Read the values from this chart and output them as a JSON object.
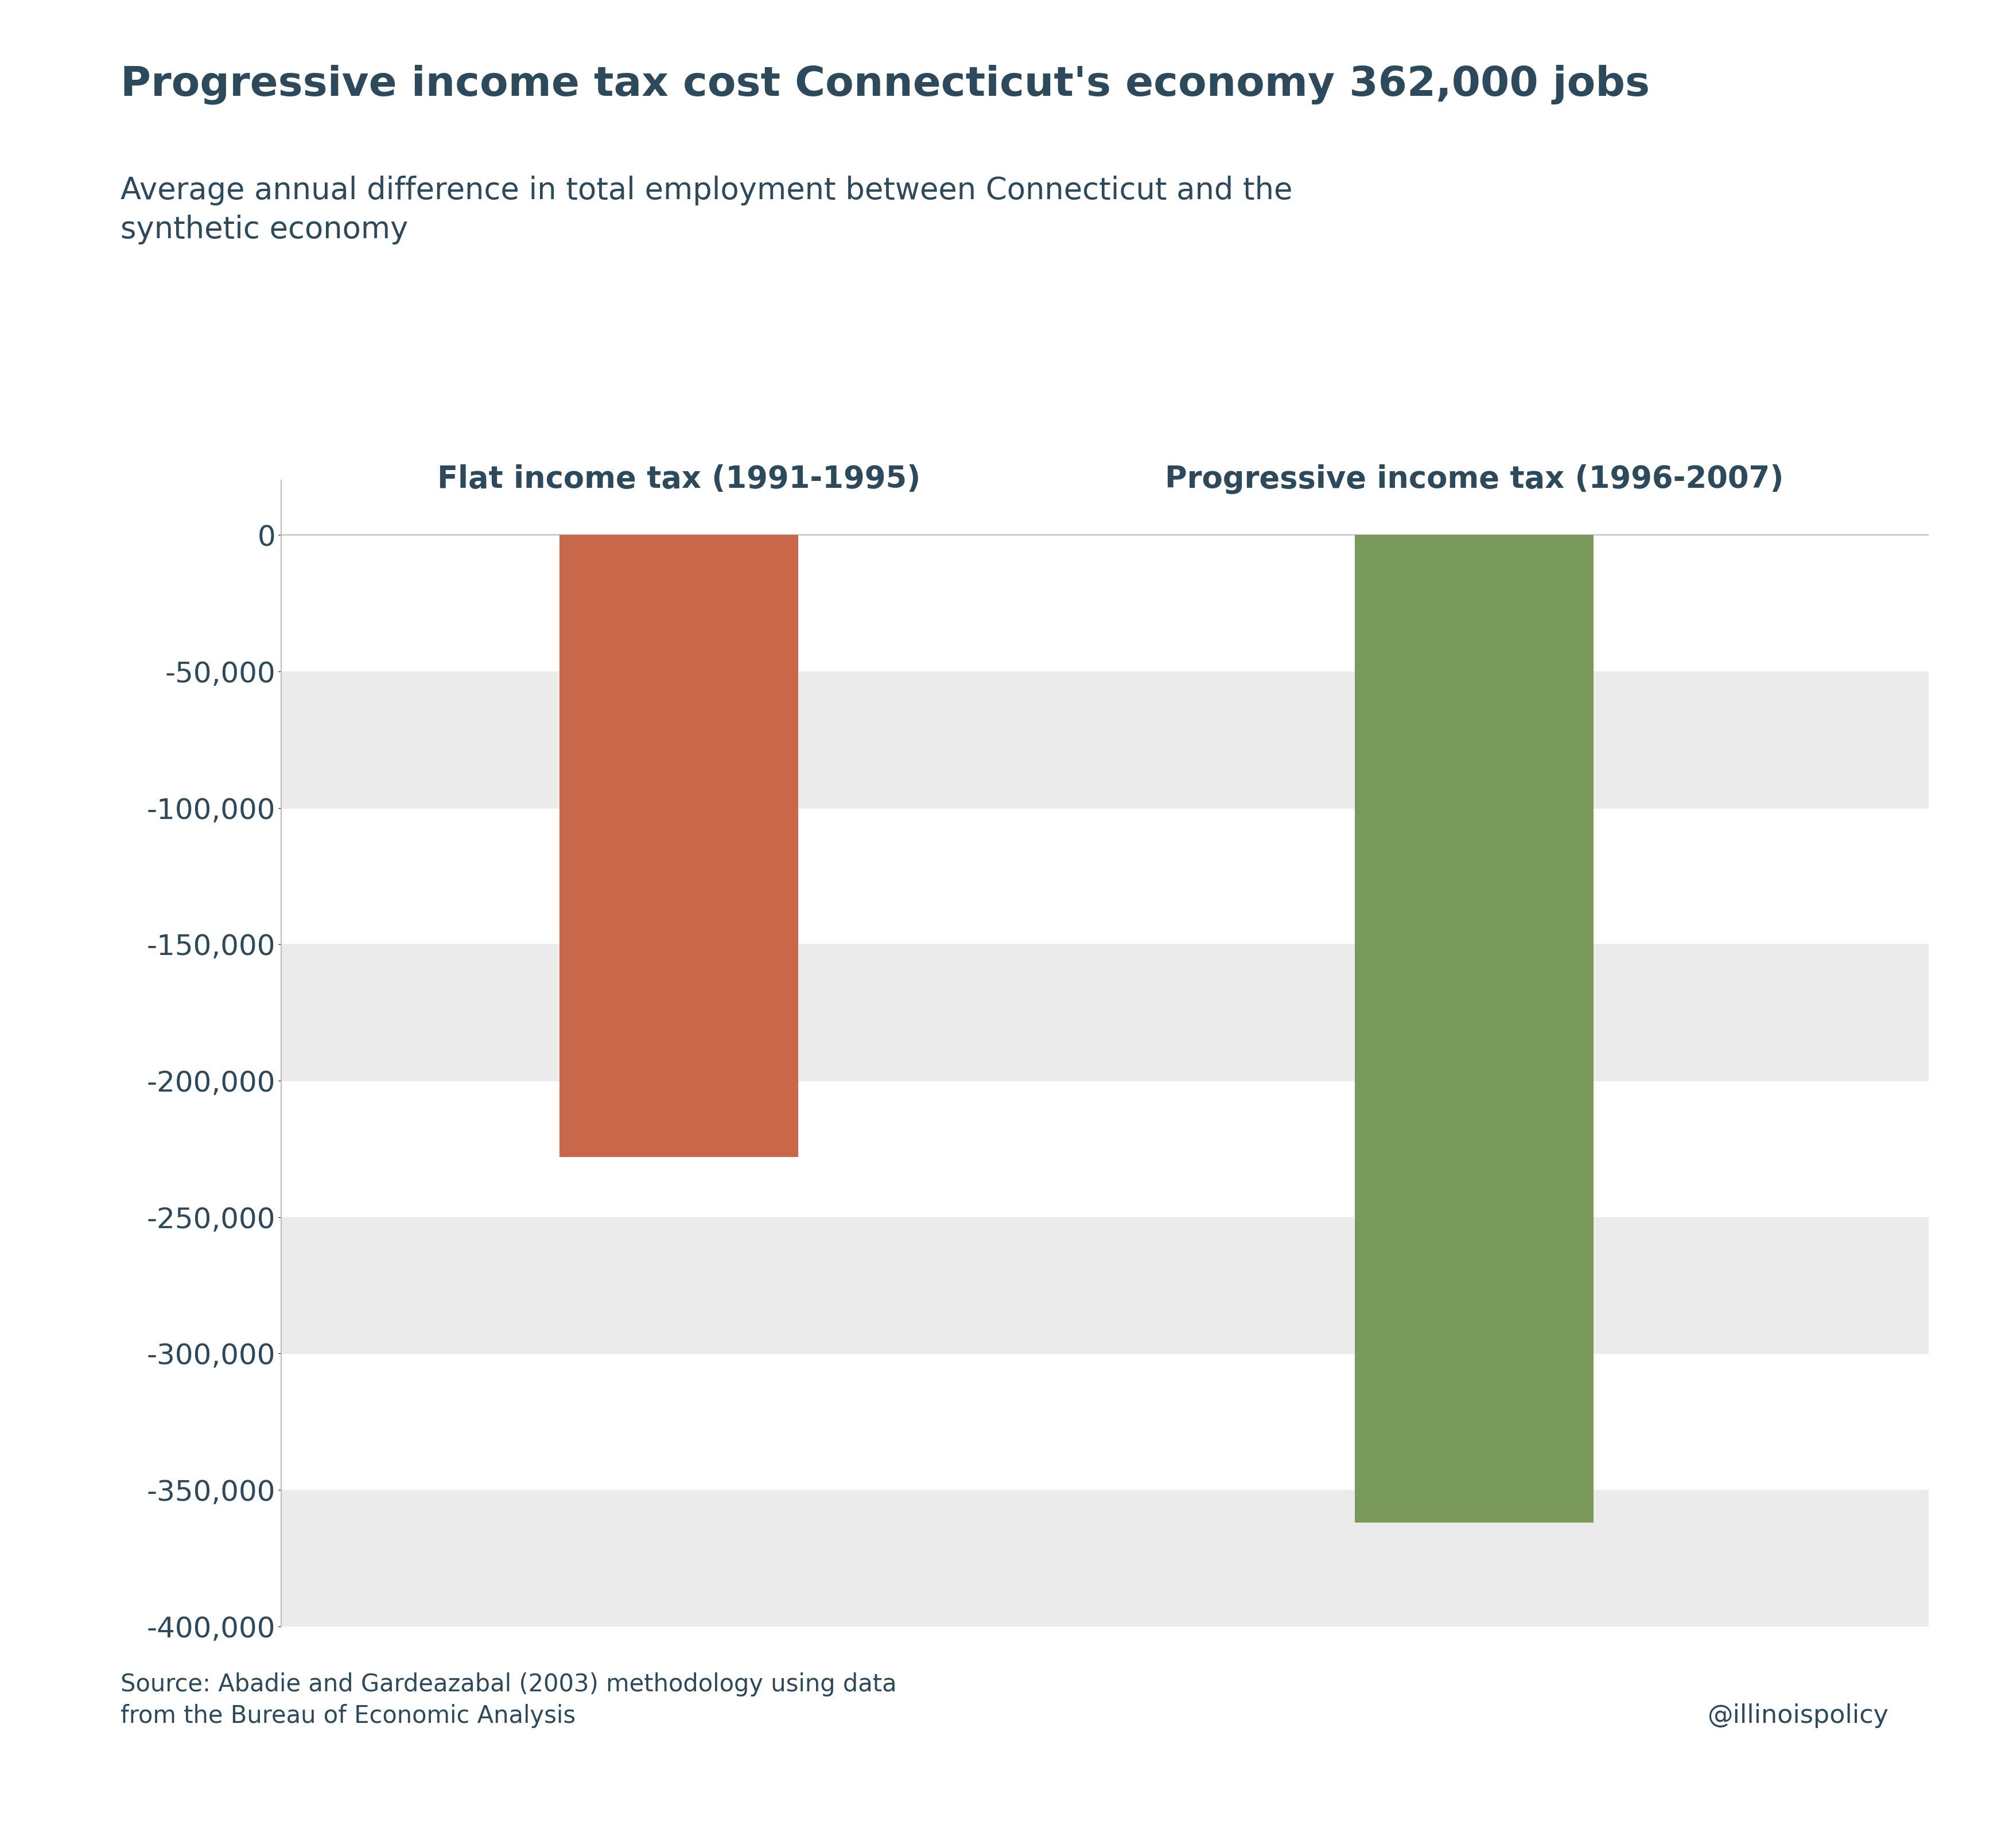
{
  "title": "Progressive income tax cost Connecticut's economy 362,000 jobs",
  "subtitle": "Average annual difference in total employment between Connecticut and the\nsynthetic economy",
  "bar_labels": [
    "Flat income tax (1991-1995)",
    "Progressive income tax (1996-2007)"
  ],
  "bar_values": [
    -228000,
    -362000
  ],
  "bar_colors": [
    "#c9674a",
    "#7a9a5b"
  ],
  "bar_positions": [
    1.0,
    2.4
  ],
  "bar_width": 0.42,
  "ylim": [
    -400000,
    20000
  ],
  "yticks": [
    0,
    -50000,
    -100000,
    -150000,
    -200000,
    -250000,
    -300000,
    -350000,
    -400000
  ],
  "ytick_labels": [
    "0",
    "-50,000",
    "-100,000",
    "-150,000",
    "-200,000",
    "-250,000",
    "-300,000",
    "-350,000",
    "-400,000"
  ],
  "title_color": "#2d4a5c",
  "subtitle_color": "#2d4a5c",
  "tick_color": "#2d4a5c",
  "background_color": "#ffffff",
  "band_color": "#ebebeb",
  "source_text": "Source: Abadie and Gardeazabal (2003) methodology using data\nfrom the Bureau of Economic Analysis",
  "watermark": "@illinoispolicy",
  "title_fontsize": 52,
  "subtitle_fontsize": 38,
  "label_fontsize": 38,
  "tick_fontsize": 36,
  "source_fontsize": 30,
  "watermark_fontsize": 32,
  "xlim": [
    0.3,
    3.2
  ]
}
